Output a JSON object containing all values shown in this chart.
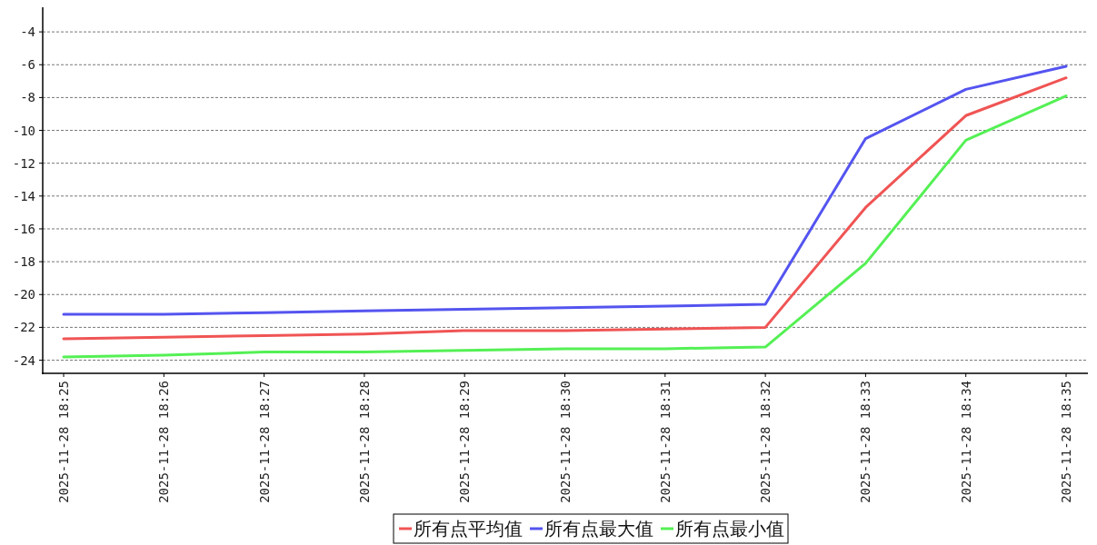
{
  "chart_data": {
    "type": "line",
    "categories": [
      "2025-11-28 18:25",
      "2025-11-28 18:26",
      "2025-11-28 18:27",
      "2025-11-28 18:28",
      "2025-11-28 18:29",
      "2025-11-28 18:30",
      "2025-11-28 18:31",
      "2025-11-28 18:32",
      "2025-11-28 18:33",
      "2025-11-28 18:34",
      "2025-11-28 18:35"
    ],
    "series": [
      {
        "name": "所有点平均值",
        "color": "#f05454",
        "values": [
          -22.7,
          -22.6,
          -22.5,
          -22.4,
          -22.2,
          -22.2,
          -22.1,
          -22.0,
          -14.7,
          -9.1,
          -6.8
        ]
      },
      {
        "name": "所有点最大值",
        "color": "#5454f0",
        "values": [
          -21.2,
          -21.2,
          -21.1,
          -21.0,
          -20.9,
          -20.8,
          -20.7,
          -20.6,
          -10.5,
          -7.5,
          -6.1
        ]
      },
      {
        "name": "所有点最小值",
        "color": "#54f054",
        "values": [
          -23.8,
          -23.7,
          -23.5,
          -23.5,
          -23.4,
          -23.3,
          -23.3,
          -23.2,
          -18.1,
          -10.6,
          -7.9
        ]
      }
    ],
    "ylim": [
      -24.8,
      -2.5
    ],
    "yticks": [
      -24,
      -22,
      -20,
      -18,
      -16,
      -14,
      -12,
      -10,
      -8,
      -6,
      -4
    ],
    "grid": "y",
    "legend": "bottom",
    "marker": "none",
    "line_style": "solid"
  }
}
